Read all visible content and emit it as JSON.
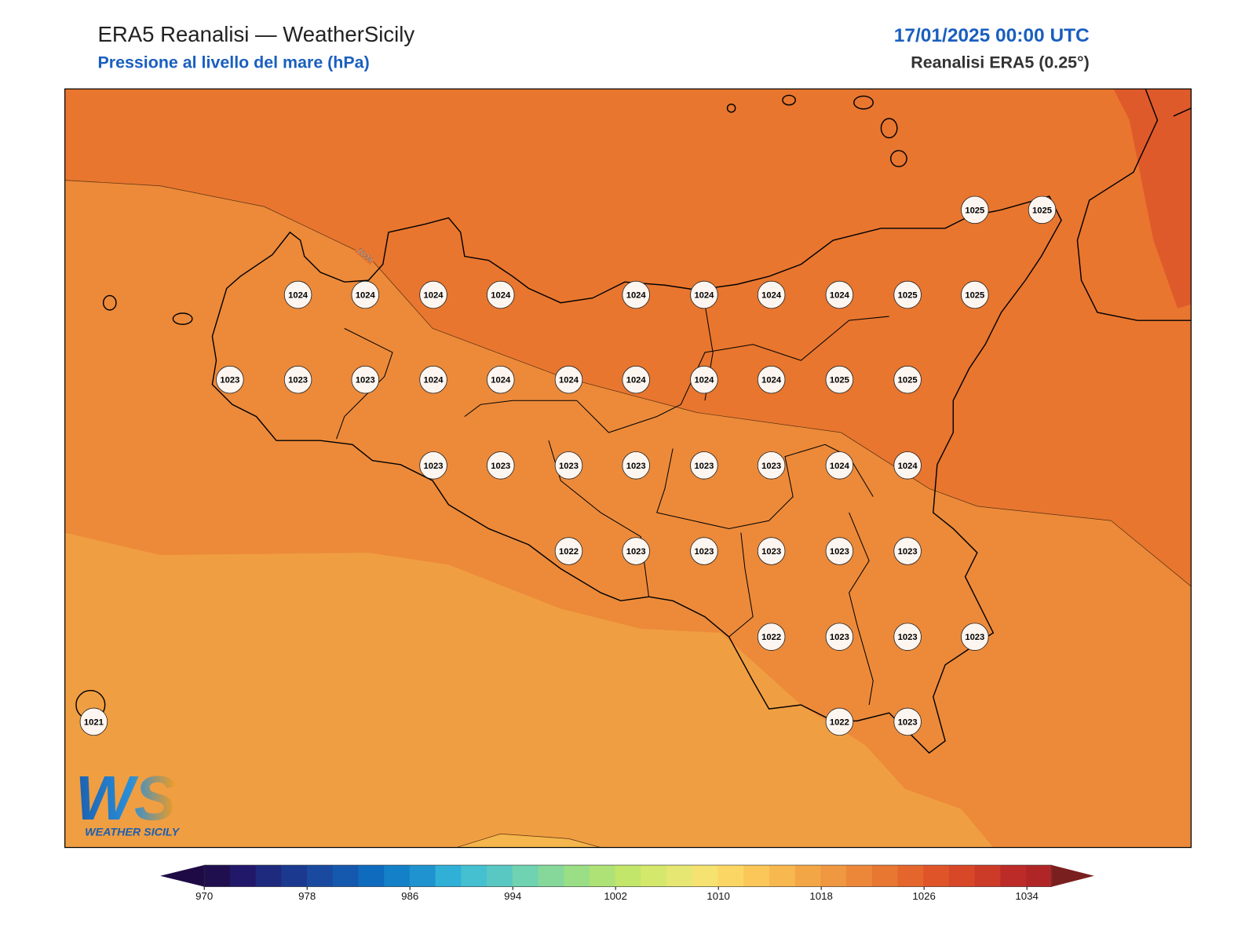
{
  "header": {
    "title": "ERA5 Reanalisi — WeatherSicily",
    "subtitle": "Pressione al livello del mare (hPa)",
    "date": "17/01/2025 00:00 UTC",
    "source": "Reanalisi ERA5 (0.25°)"
  },
  "map": {
    "contour_label": "1024",
    "stations": [
      1025,
      1025,
      1024,
      1024,
      1024,
      1024,
      1024,
      1024,
      1024,
      1024,
      1025,
      1025,
      1023,
      1023,
      1023,
      1024,
      1024,
      1024,
      1024,
      1024,
      1024,
      1025,
      1025,
      1023,
      1023,
      1023,
      1023,
      1023,
      1023,
      1024,
      1024,
      1022,
      1023,
      1023,
      1023,
      1023,
      1023,
      1022,
      1023,
      1023,
      1023,
      1021,
      1022,
      1023
    ]
  },
  "logo": {
    "mark": "WS",
    "text": "WEATHER SICILY"
  },
  "colorbar": {
    "ticks": [
      970,
      978,
      986,
      994,
      1002,
      1010,
      1018,
      1026,
      1034
    ],
    "colors": [
      "#1f0f4f",
      "#22186a",
      "#1e2a7d",
      "#1b3a8f",
      "#1a4aa0",
      "#1559ae",
      "#0f6bbd",
      "#1480c8",
      "#1f93cf",
      "#30b0d6",
      "#45c0d0",
      "#5ac8c2",
      "#6fd2b0",
      "#86d89a",
      "#9ade86",
      "#aee276",
      "#c2e66a",
      "#d4e86c",
      "#e6e772",
      "#f5e271",
      "#fbd664",
      "#fac758",
      "#f7b84f",
      "#f3a646",
      "#ef9741",
      "#ec873a",
      "#e87732",
      "#e4662d",
      "#df5529",
      "#d74728",
      "#cc3a28",
      "#bc2b28",
      "#b02626"
    ]
  }
}
